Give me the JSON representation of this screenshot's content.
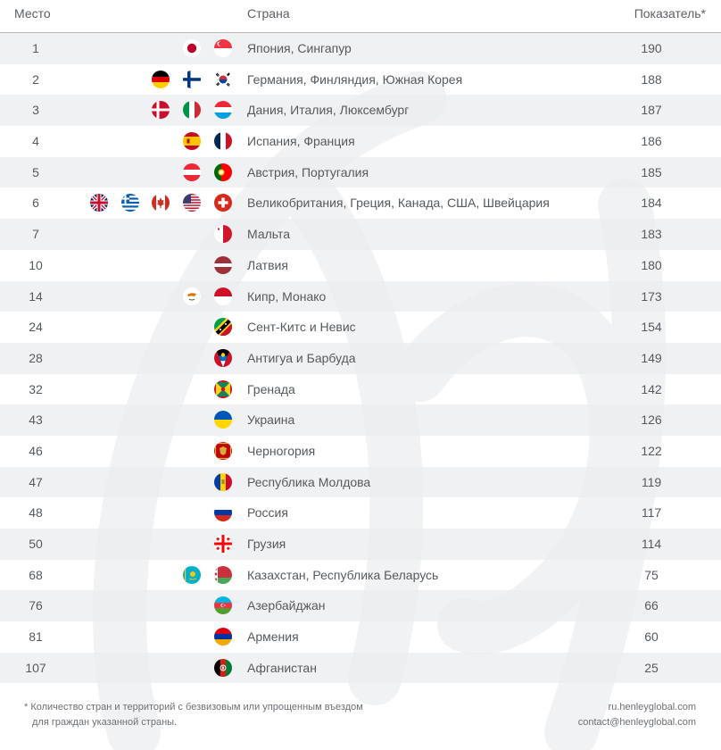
{
  "header": {
    "rank": "Место",
    "country": "Страна",
    "score": "Показатель*"
  },
  "rows": [
    {
      "rank": "1",
      "country": "Япония, Сингапур",
      "score": "190",
      "flags": [
        "jp",
        "sg"
      ]
    },
    {
      "rank": "2",
      "country": "Германия, Финляндия, Южная Корея",
      "score": "188",
      "flags": [
        "de",
        "fi",
        "kr"
      ]
    },
    {
      "rank": "3",
      "country": "Дания, Италия, Люксембург",
      "score": "187",
      "flags": [
        "dk",
        "it",
        "lu"
      ]
    },
    {
      "rank": "4",
      "country": "Испания, Франция",
      "score": "186",
      "flags": [
        "es",
        "fr"
      ]
    },
    {
      "rank": "5",
      "country": "Австрия, Португалия",
      "score": "185",
      "flags": [
        "at",
        "pt"
      ]
    },
    {
      "rank": "6",
      "country": "Великобритания, Греция, Канада, США, Швейцария",
      "score": "184",
      "flags": [
        "gb",
        "gr",
        "ca",
        "us",
        "ch"
      ]
    },
    {
      "rank": "7",
      "country": "Мальта",
      "score": "183",
      "flags": [
        "mt"
      ]
    },
    {
      "rank": "10",
      "country": "Латвия",
      "score": "180",
      "flags": [
        "lv"
      ]
    },
    {
      "rank": "14",
      "country": "Кипр, Монако",
      "score": "173",
      "flags": [
        "cy",
        "mc"
      ]
    },
    {
      "rank": "24",
      "country": "Сент-Китс и Невис",
      "score": "154",
      "flags": [
        "kn"
      ]
    },
    {
      "rank": "28",
      "country": "Антигуа и Барбуда",
      "score": "149",
      "flags": [
        "ag"
      ]
    },
    {
      "rank": "32",
      "country": "Гренада",
      "score": "142",
      "flags": [
        "gd"
      ]
    },
    {
      "rank": "43",
      "country": "Украина",
      "score": "126",
      "flags": [
        "ua"
      ]
    },
    {
      "rank": "46",
      "country": "Черногория",
      "score": "122",
      "flags": [
        "me"
      ]
    },
    {
      "rank": "47",
      "country": "Республика Молдова",
      "score": "119",
      "flags": [
        "md"
      ]
    },
    {
      "rank": "48",
      "country": "Россия",
      "score": "117",
      "flags": [
        "ru"
      ]
    },
    {
      "rank": "50",
      "country": "Грузия",
      "score": "114",
      "flags": [
        "ge"
      ]
    },
    {
      "rank": "68",
      "country": "Казахстан, Республика Беларусь",
      "score": "75",
      "flags": [
        "kz",
        "by"
      ]
    },
    {
      "rank": "76",
      "country": "Азербайджан",
      "score": "66",
      "flags": [
        "az"
      ]
    },
    {
      "rank": "81",
      "country": "Армения",
      "score": "60",
      "flags": [
        "am"
      ]
    },
    {
      "rank": "107",
      "country": "Афганистан",
      "score": "25",
      "flags": [
        "af"
      ]
    }
  ],
  "footnote": {
    "line1": "*  Количество стран и территорий с безвизовым или упрощенным въездом",
    "line2": "для граждан указанной страны."
  },
  "contact": {
    "site": "ru.henleyglobal.com",
    "email": "contact@henleyglobal.com"
  },
  "colors": {
    "row_alt": "#eceded",
    "text": "#555a5e",
    "rule": "#b7b9bb"
  }
}
